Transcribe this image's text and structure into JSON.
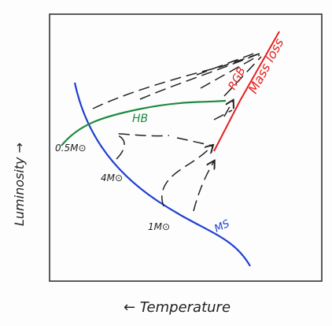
{
  "axes": {
    "y_label": "Luminosity →",
    "x_label": "← Temperature"
  },
  "labels": {
    "hb": "HB",
    "rgb": "RGB",
    "mass_loss": "Mass loss",
    "ms": "MS",
    "mass_05": "0.5M⊙",
    "mass_4": "4M⊙",
    "mass_1": "1M⊙"
  }
}
